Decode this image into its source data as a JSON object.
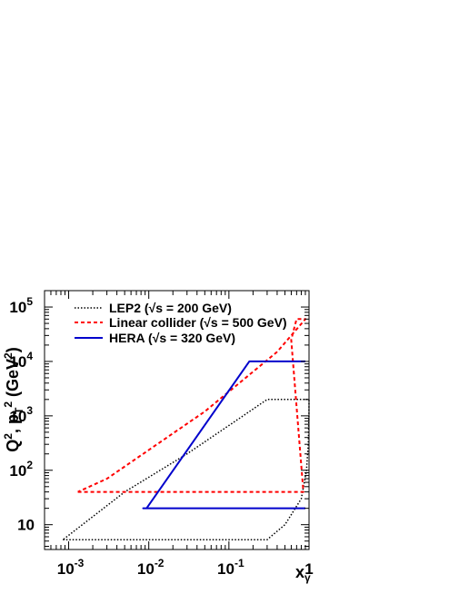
{
  "chart_data": {
    "type": "line",
    "title": "",
    "xscale": "log",
    "yscale": "log",
    "xlim": [
      0.0005,
      1
    ],
    "ylim": [
      3.5,
      200000
    ],
    "xlabel": {
      "base": "x",
      "sub": "γ"
    },
    "ylabel": {
      "p1": "Q",
      "p1sup": "2",
      "sep": ", p",
      "p2sub": "T",
      "p2sup": "2",
      "unit_open": " (GeV",
      "unit_sup": "2",
      "unit_close": ")"
    },
    "xticks": [
      {
        "value": 0.001,
        "base": "10",
        "exp": "-3"
      },
      {
        "value": 0.01,
        "base": "10",
        "exp": "-2"
      },
      {
        "value": 0.1,
        "base": "10",
        "exp": "-1"
      },
      {
        "value": 1,
        "base": "1",
        "exp": ""
      }
    ],
    "yticks": [
      {
        "value": 10,
        "base": "10",
        "exp": ""
      },
      {
        "value": 100,
        "base": "10",
        "exp": "2"
      },
      {
        "value": 1000,
        "base": "10",
        "exp": "3"
      },
      {
        "value": 10000,
        "base": "10",
        "exp": "4"
      },
      {
        "value": 100000,
        "base": "10",
        "exp": "5"
      }
    ],
    "legend_position": "top-left",
    "series": [
      {
        "name": "LEP2 (√s = 200 GeV)",
        "color": "#000000",
        "dash": "dotted",
        "points": [
          [
            0.00085,
            5.3
          ],
          [
            0.3,
            5.3
          ],
          [
            0.5,
            10
          ],
          [
            0.8,
            30
          ],
          [
            0.93,
            100
          ],
          [
            0.98,
            300
          ],
          [
            0.998,
            1000
          ],
          [
            1.0,
            2000
          ],
          [
            0.3,
            2000
          ],
          [
            0.15,
            1000
          ],
          [
            0.03,
            200
          ],
          [
            0.005,
            40
          ],
          [
            0.00085,
            5.3
          ]
        ]
      },
      {
        "name": "Linear collider (√s = 500 GeV)",
        "color": "#ff0000",
        "dash": "dashed",
        "points": [
          [
            0.0013,
            40
          ],
          [
            0.6,
            40
          ],
          [
            0.85,
            40
          ],
          [
            0.6,
            25000
          ],
          [
            0.7,
            60000
          ],
          [
            0.9,
            60000
          ],
          [
            0.4,
            15000
          ],
          [
            0.05,
            1200
          ],
          [
            0.003,
            70
          ],
          [
            0.0013,
            40
          ]
        ]
      },
      {
        "name": "HERA (√s = 320 GeV)",
        "color": "#0000cc",
        "dash": "solid",
        "points": [
          [
            0.9,
            20
          ],
          [
            0.0085,
            20
          ],
          [
            0.0094,
            20
          ],
          [
            0.18,
            10000
          ],
          [
            0.9,
            10000
          ]
        ]
      }
    ]
  }
}
